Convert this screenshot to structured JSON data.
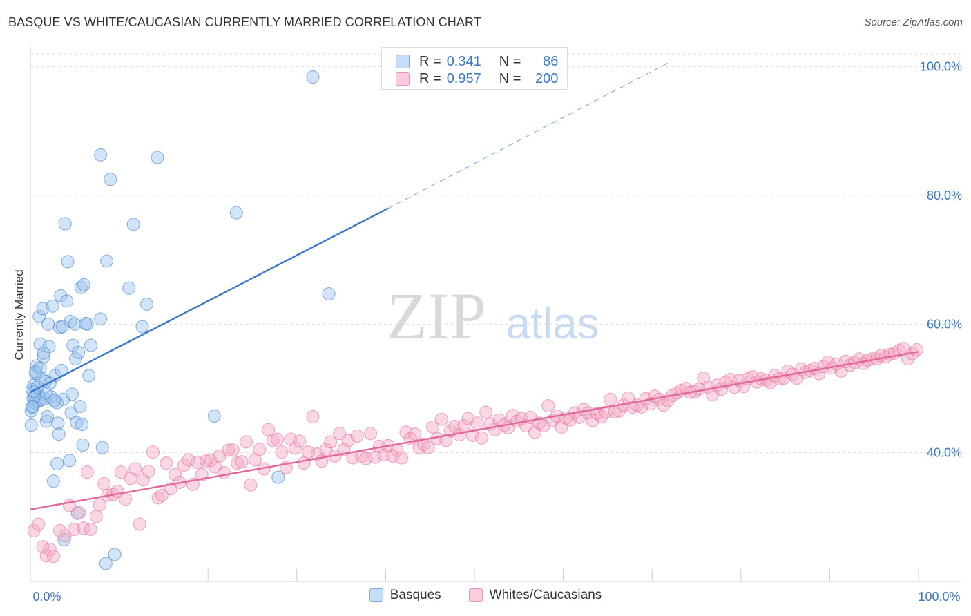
{
  "header": {
    "title": "BASQUE VS WHITE/CAUCASIAN CURRENTLY MARRIED CORRELATION CHART",
    "source": "Source: ZipAtlas.com"
  },
  "watermark": {
    "part1": "ZIP",
    "part2": "atlas"
  },
  "stats": {
    "rows": [
      {
        "r_label": "R =",
        "r_value": "0.341",
        "n_label": "N =",
        "n_value": "86",
        "color": "#9cc3ee"
      },
      {
        "r_label": "R =",
        "r_value": "0.957",
        "n_label": "N =",
        "n_value": "200",
        "color": "#f4a8c0"
      }
    ]
  },
  "legend": {
    "items": [
      {
        "label": "Basques",
        "color": "#9cc3ee"
      },
      {
        "label": "Whites/Caucasians",
        "color": "#f4a8c0"
      }
    ]
  },
  "chart_data": {
    "type": "scatter",
    "title": "BASQUE VS WHITE/CAUCASIAN CURRENTLY MARRIED CORRELATION CHART",
    "xlabel": "",
    "ylabel": "Currently Married",
    "xlim": [
      0,
      100
    ],
    "ylim": [
      20,
      102
    ],
    "x_tick_labels": [
      "0.0%",
      "100.0%"
    ],
    "y_ticks": [
      40,
      60,
      80,
      100
    ],
    "y_tick_labels": [
      "40.0%",
      "60.0%",
      "80.0%",
      "100.0%"
    ],
    "grid": true,
    "legend_position": "bottom-center",
    "series": [
      {
        "name": "Basques",
        "color": "#3a78c9",
        "fill": "#9cc3ee",
        "trendline": {
          "x0": 0,
          "y0": 49.4,
          "x1": 40.3,
          "y1": 78.0,
          "dashed_to": {
            "x": 72.1,
            "y": 100.8
          }
        },
        "points": [
          [
            0.1,
            46.5
          ],
          [
            0.2,
            49.8
          ],
          [
            0.3,
            48.5
          ],
          [
            0.4,
            50.5
          ],
          [
            0.5,
            47.8
          ],
          [
            0.6,
            52.3
          ],
          [
            0.7,
            53.5
          ],
          [
            0.8,
            49.1
          ],
          [
            0.9,
            48.0
          ],
          [
            1.0,
            61.2
          ],
          [
            1.1,
            56.9
          ],
          [
            1.2,
            48.2
          ],
          [
            1.3,
            51.5
          ],
          [
            1.4,
            62.4
          ],
          [
            1.5,
            54.9
          ],
          [
            1.6,
            48.4
          ],
          [
            1.7,
            51.1
          ],
          [
            1.8,
            44.9
          ],
          [
            2.0,
            60.0
          ],
          [
            2.1,
            56.5
          ],
          [
            2.3,
            48.7
          ],
          [
            2.5,
            62.8
          ],
          [
            2.6,
            35.6
          ],
          [
            2.8,
            52.0
          ],
          [
            3.0,
            38.3
          ],
          [
            3.0,
            47.8
          ],
          [
            3.1,
            44.6
          ],
          [
            3.2,
            42.9
          ],
          [
            3.3,
            59.5
          ],
          [
            3.4,
            64.4
          ],
          [
            3.5,
            52.8
          ],
          [
            3.7,
            48.3
          ],
          [
            3.8,
            26.5
          ],
          [
            3.9,
            75.6
          ],
          [
            4.1,
            63.6
          ],
          [
            4.2,
            69.7
          ],
          [
            4.4,
            38.8
          ],
          [
            4.5,
            60.4
          ],
          [
            4.6,
            46.2
          ],
          [
            4.7,
            49.1
          ],
          [
            4.8,
            56.7
          ],
          [
            5.0,
            60.0
          ],
          [
            5.1,
            54.6
          ],
          [
            5.2,
            44.7
          ],
          [
            5.3,
            30.6
          ],
          [
            5.4,
            55.6
          ],
          [
            5.6,
            47.2
          ],
          [
            5.7,
            65.7
          ],
          [
            5.8,
            44.4
          ],
          [
            5.9,
            41.2
          ],
          [
            6.0,
            66.1
          ],
          [
            6.2,
            60.1
          ],
          [
            6.4,
            60.0
          ],
          [
            6.6,
            52.0
          ],
          [
            6.8,
            56.7
          ],
          [
            7.9,
            86.3
          ],
          [
            7.9,
            60.8
          ],
          [
            8.1,
            40.8
          ],
          [
            8.5,
            22.8
          ],
          [
            8.6,
            69.8
          ],
          [
            9.0,
            82.5
          ],
          [
            9.5,
            24.2
          ],
          [
            11.1,
            65.6
          ],
          [
            11.6,
            75.5
          ],
          [
            12.6,
            59.6
          ],
          [
            13.1,
            63.1
          ],
          [
            14.3,
            85.9
          ],
          [
            20.7,
            45.7
          ],
          [
            23.2,
            77.3
          ],
          [
            27.9,
            36.2
          ],
          [
            31.8,
            98.4
          ],
          [
            33.6,
            64.7
          ],
          [
            0.5,
            48.9
          ],
          [
            1.8,
            49.3
          ],
          [
            0.3,
            47.2
          ],
          [
            0.8,
            50.2
          ],
          [
            1.5,
            55.5
          ],
          [
            2.2,
            50.8
          ],
          [
            0.6,
            52.6
          ],
          [
            1.1,
            53.2
          ],
          [
            0.4,
            49.5
          ],
          [
            2.7,
            48.1
          ],
          [
            1.9,
            45.6
          ],
          [
            3.6,
            59.6
          ],
          [
            0.2,
            47.1
          ],
          [
            0.1,
            44.3
          ]
        ]
      },
      {
        "name": "Whites/Caucasians",
        "color": "#e0679a",
        "fill": "#f4a8c0",
        "trendline": {
          "x0": 0,
          "y0": 31.2,
          "x1": 100,
          "y1": 55.7
        },
        "points": [
          [
            0.4,
            27.9
          ],
          [
            0.9,
            28.9
          ],
          [
            1.4,
            25.4
          ],
          [
            1.8,
            24.0
          ],
          [
            2.2,
            25.0
          ],
          [
            2.6,
            23.9
          ],
          [
            3.3,
            27.9
          ],
          [
            3.9,
            27.1
          ],
          [
            4.4,
            31.8
          ],
          [
            4.9,
            28.1
          ],
          [
            5.5,
            30.7
          ],
          [
            6.0,
            28.3
          ],
          [
            6.4,
            37.0
          ],
          [
            6.8,
            28.1
          ],
          [
            7.4,
            30.1
          ],
          [
            7.8,
            31.9
          ],
          [
            8.3,
            35.2
          ],
          [
            8.7,
            33.4
          ],
          [
            9.3,
            33.5
          ],
          [
            9.8,
            34.0
          ],
          [
            10.2,
            37.0
          ],
          [
            10.7,
            32.8
          ],
          [
            11.3,
            36.0
          ],
          [
            11.8,
            37.5
          ],
          [
            12.3,
            28.9
          ],
          [
            12.7,
            35.8
          ],
          [
            13.3,
            37.1
          ],
          [
            13.8,
            40.1
          ],
          [
            14.4,
            33.0
          ],
          [
            14.8,
            33.4
          ],
          [
            15.3,
            38.4
          ],
          [
            15.8,
            34.4
          ],
          [
            16.3,
            36.6
          ],
          [
            16.8,
            35.4
          ],
          [
            17.3,
            38.1
          ],
          [
            17.8,
            38.9
          ],
          [
            18.3,
            35.1
          ],
          [
            18.8,
            38.5
          ],
          [
            19.3,
            36.6
          ],
          [
            19.8,
            38.7
          ],
          [
            20.3,
            38.8
          ],
          [
            20.8,
            37.8
          ],
          [
            21.3,
            39.5
          ],
          [
            21.8,
            36.9
          ],
          [
            22.3,
            40.4
          ],
          [
            22.8,
            40.4
          ],
          [
            23.3,
            38.4
          ],
          [
            23.8,
            38.6
          ],
          [
            24.3,
            41.7
          ],
          [
            24.8,
            35.0
          ],
          [
            25.3,
            38.9
          ],
          [
            25.8,
            40.5
          ],
          [
            26.3,
            37.5
          ],
          [
            26.8,
            43.6
          ],
          [
            27.3,
            41.9
          ],
          [
            27.8,
            42.1
          ],
          [
            28.3,
            40.1
          ],
          [
            28.8,
            37.7
          ],
          [
            29.3,
            42.1
          ],
          [
            29.8,
            40.7
          ],
          [
            30.3,
            41.8
          ],
          [
            30.8,
            38.4
          ],
          [
            31.3,
            40.1
          ],
          [
            31.8,
            45.6
          ],
          [
            32.3,
            39.8
          ],
          [
            32.8,
            38.7
          ],
          [
            33.3,
            40.5
          ],
          [
            33.8,
            41.7
          ],
          [
            34.3,
            39.5
          ],
          [
            34.8,
            43.0
          ],
          [
            35.3,
            40.5
          ],
          [
            35.8,
            41.9
          ],
          [
            36.3,
            39.2
          ],
          [
            36.8,
            42.6
          ],
          [
            37.3,
            39.5
          ],
          [
            37.8,
            39.1
          ],
          [
            38.3,
            43.0
          ],
          [
            38.8,
            39.3
          ],
          [
            39.3,
            41.0
          ],
          [
            39.8,
            39.7
          ],
          [
            40.3,
            41.1
          ],
          [
            40.8,
            39.5
          ],
          [
            41.3,
            40.4
          ],
          [
            41.8,
            39.2
          ],
          [
            42.3,
            43.2
          ],
          [
            42.8,
            42.2
          ],
          [
            43.3,
            42.9
          ],
          [
            43.8,
            40.8
          ],
          [
            44.3,
            41.3
          ],
          [
            44.8,
            40.8
          ],
          [
            45.3,
            44.0
          ],
          [
            45.8,
            42.2
          ],
          [
            46.3,
            45.2
          ],
          [
            46.8,
            41.9
          ],
          [
            47.3,
            43.4
          ],
          [
            47.8,
            44.1
          ],
          [
            48.3,
            42.8
          ],
          [
            48.8,
            44.2
          ],
          [
            49.3,
            45.3
          ],
          [
            49.8,
            42.7
          ],
          [
            50.3,
            44.6
          ],
          [
            50.8,
            42.3
          ],
          [
            51.3,
            46.3
          ],
          [
            51.8,
            44.5
          ],
          [
            52.3,
            43.6
          ],
          [
            52.8,
            45.1
          ],
          [
            53.3,
            44.3
          ],
          [
            53.8,
            43.9
          ],
          [
            54.3,
            45.8
          ],
          [
            54.8,
            44.9
          ],
          [
            55.3,
            45.3
          ],
          [
            55.8,
            44.2
          ],
          [
            56.3,
            45.5
          ],
          [
            56.8,
            43.2
          ],
          [
            57.3,
            44.6
          ],
          [
            57.8,
            44.2
          ],
          [
            58.3,
            47.3
          ],
          [
            58.8,
            45.0
          ],
          [
            59.3,
            45.7
          ],
          [
            59.8,
            44.0
          ],
          [
            60.3,
            45.4
          ],
          [
            60.8,
            45.1
          ],
          [
            61.3,
            46.2
          ],
          [
            61.8,
            45.5
          ],
          [
            62.3,
            46.7
          ],
          [
            62.8,
            46.2
          ],
          [
            63.3,
            45.0
          ],
          [
            63.8,
            46.1
          ],
          [
            64.3,
            45.6
          ],
          [
            64.8,
            46.3
          ],
          [
            65.3,
            48.3
          ],
          [
            65.8,
            46.4
          ],
          [
            66.3,
            46.5
          ],
          [
            66.8,
            47.4
          ],
          [
            67.3,
            48.5
          ],
          [
            67.8,
            47.1
          ],
          [
            68.3,
            47.4
          ],
          [
            68.8,
            47.1
          ],
          [
            69.3,
            48.4
          ],
          [
            69.8,
            47.6
          ],
          [
            70.3,
            48.8
          ],
          [
            70.8,
            48.3
          ],
          [
            71.3,
            47.4
          ],
          [
            71.8,
            48.1
          ],
          [
            72.3,
            48.9
          ],
          [
            72.8,
            49.3
          ],
          [
            73.3,
            49.7
          ],
          [
            73.8,
            50.0
          ],
          [
            74.3,
            49.4
          ],
          [
            74.8,
            49.5
          ],
          [
            75.3,
            49.9
          ],
          [
            75.8,
            51.6
          ],
          [
            76.3,
            50.2
          ],
          [
            76.8,
            49.0
          ],
          [
            77.3,
            50.5
          ],
          [
            77.8,
            49.9
          ],
          [
            78.3,
            51.0
          ],
          [
            78.8,
            51.4
          ],
          [
            79.3,
            50.2
          ],
          [
            79.8,
            51.2
          ],
          [
            80.3,
            50.3
          ],
          [
            80.8,
            51.5
          ],
          [
            81.3,
            51.8
          ],
          [
            81.8,
            51.0
          ],
          [
            82.3,
            51.5
          ],
          [
            82.8,
            51.3
          ],
          [
            83.3,
            50.9
          ],
          [
            83.8,
            52.0
          ],
          [
            84.3,
            51.5
          ],
          [
            84.8,
            51.6
          ],
          [
            85.3,
            52.7
          ],
          [
            85.8,
            52.2
          ],
          [
            86.3,
            51.6
          ],
          [
            86.8,
            53.0
          ],
          [
            87.3,
            52.5
          ],
          [
            87.8,
            52.8
          ],
          [
            88.3,
            53.1
          ],
          [
            88.8,
            52.3
          ],
          [
            89.3,
            53.4
          ],
          [
            89.8,
            54.1
          ],
          [
            90.3,
            53.2
          ],
          [
            90.8,
            53.8
          ],
          [
            91.3,
            52.7
          ],
          [
            91.8,
            54.2
          ],
          [
            92.3,
            53.6
          ],
          [
            92.8,
            54.0
          ],
          [
            93.3,
            54.6
          ],
          [
            93.8,
            53.9
          ],
          [
            94.3,
            54.4
          ],
          [
            94.8,
            54.6
          ],
          [
            95.3,
            54.6
          ],
          [
            95.8,
            55.1
          ],
          [
            96.3,
            54.9
          ],
          [
            96.8,
            55.3
          ],
          [
            97.3,
            55.5
          ],
          [
            97.8,
            55.9
          ],
          [
            98.3,
            56.2
          ],
          [
            98.8,
            54.6
          ],
          [
            99.3,
            55.4
          ],
          [
            99.8,
            56.0
          ]
        ]
      }
    ]
  }
}
